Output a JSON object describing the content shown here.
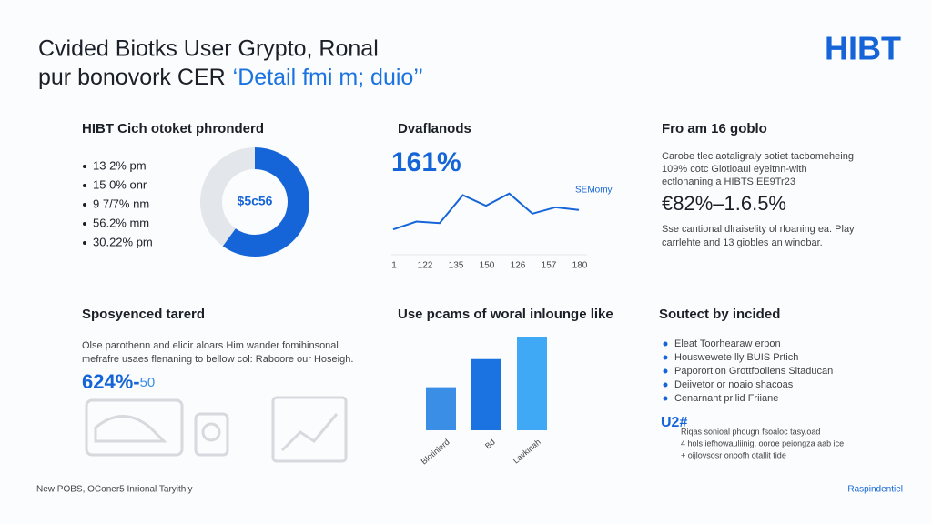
{
  "header": {
    "title_line1": "Cvided Biotks User Grypto, Ronal",
    "title_line2": "pur bonovork CER",
    "title_highlight": "‘Detail fmi m; duio’’",
    "logo": "HIBT"
  },
  "panel1": {
    "heading": "HIBT Cich otoket phronderd",
    "items": [
      "13 2% pm",
      "15 0% onr",
      "9 7/7% nm",
      "56.2% mm",
      "30.22% pm"
    ],
    "donut": {
      "center_label": "$5c56",
      "values": [
        60,
        40
      ],
      "colors": [
        "#1565d8",
        "#e3e6ea"
      ]
    }
  },
  "panel2": {
    "heading": "Dvaflanods",
    "big_value": "161%",
    "series_label": "SEMomy",
    "line": {
      "values": [
        10,
        25,
        22,
        75,
        55,
        78,
        40,
        52,
        47
      ],
      "ylim": [
        0,
        100
      ],
      "color": "#1565d8"
    },
    "x_labels": [
      "1",
      "122",
      "135",
      "150",
      "126",
      "157",
      "180"
    ]
  },
  "panel3": {
    "heading": "Fro am 16 goblo",
    "text_lines": [
      "Carobe tlec aotaligraly sotiet tacbomeheing",
      "109% cotc Glotioaul eyeitnn-with",
      "ectlonaning a HIBTS EE9Tr23"
    ],
    "big_value": "€82%–1.6.5%",
    "note_lines": [
      "Sse cantional dlraiselity ol rloaning ea. Play",
      "carrlehte and 13 giobles an winobar."
    ]
  },
  "panel4": {
    "heading": "Sposyenced tarerd",
    "text_lines": [
      "Olse parothenn and elicir aloars Him wander fomihinsonal",
      "mefrafre usaes flenaning to bellow col: Raboore our Hoseigh."
    ],
    "big_value": "624%-",
    "small_value": "50"
  },
  "panel5": {
    "heading": "Use pcams of woral inlounge like",
    "bars": {
      "values": [
        46,
        76,
        100
      ],
      "colors": [
        "#3a8ee6",
        "#1a73e0",
        "#3fa9f5"
      ],
      "labels": [
        "Blotinlerd",
        "Bd",
        "Lavkinah"
      ]
    }
  },
  "panel6": {
    "heading": "Soutect by incided",
    "items": [
      "Eleat Toorhearaw erpon",
      "Houswewete lly BUIS Prtich",
      "Paporortion Grottfoollens Sltaducan",
      "Deiivetor or noaio shacoas",
      "Cenarnant prilid Friiane"
    ],
    "big_value": "U2#",
    "text_lines": [
      "Riqas sonioal phougn fsoaloc tasy.oad",
      "4 hols iefhowauliinig, ooroe peiongza aab ice",
      "+ oijlovsosr onoofh otallit tide"
    ]
  },
  "footer": {
    "left": "New POBS, OConer5 Inrional Taryithly",
    "right": "Raspindentiel"
  }
}
